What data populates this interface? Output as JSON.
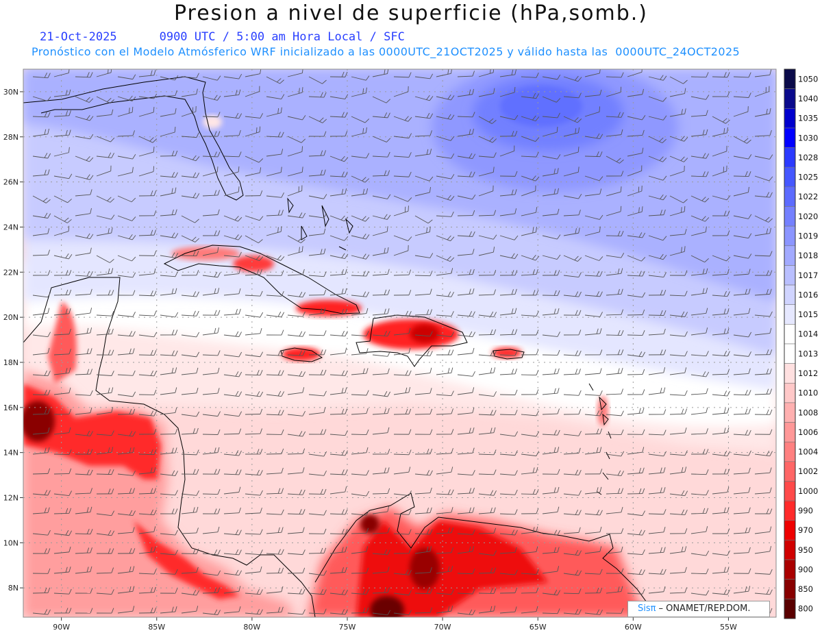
{
  "title": "Presion a nivel de superficie (hPa,somb.)",
  "date": "21-Oct-2025",
  "valid_time": "0900 UTC / 5:00 am Hora Local / SFC",
  "subtitle": "Pronóstico con el Modelo Atmósferico WRF inicializado a las 0000UTC_21OCT2025 y válido hasta las  0000UTC_24OCT2025",
  "lat_labels": [
    "30N",
    "28N",
    "26N",
    "24N",
    "22N",
    "20N",
    "18N",
    "16N",
    "14N",
    "12N",
    "10N",
    "8N"
  ],
  "lon_labels": [
    "90W",
    "85W",
    "80W",
    "75W",
    "70W",
    "65W",
    "60W",
    "55W"
  ],
  "legend_levels": [
    "1050",
    "1040",
    "1035",
    "1030",
    "1028",
    "1025",
    "1022",
    "1020",
    "1019",
    "1018",
    "1017",
    "1016",
    "1015",
    "1014",
    "1013",
    "1012",
    "1010",
    "1008",
    "1006",
    "1004",
    "1002",
    "1000",
    "990",
    "970",
    "950",
    "900",
    "850",
    "800"
  ],
  "legend_colors": [
    "#0b0b4a",
    "#0a0a8c",
    "#0000cd",
    "#0000ff",
    "#2b3aff",
    "#4557ff",
    "#5c6bff",
    "#7480ff",
    "#8b95ff",
    "#a2aaff",
    "#b9bfff",
    "#d0d4ff",
    "#e6e8ff",
    "#ffffff",
    "#ffffff",
    "#ffe0e0",
    "#ffc8c8",
    "#ffb0b0",
    "#ff9898",
    "#ff8080",
    "#ff6666",
    "#ff4a4a",
    "#ff2a2a",
    "#ee0000",
    "#d00000",
    "#aa0000",
    "#880000",
    "#5a0000"
  ],
  "credit": {
    "logo": "Sisπ",
    "text": "– ONAMET/REP.DOM."
  },
  "map": {
    "lon_range": [
      -92,
      -52.5
    ],
    "lat_range": [
      6.7,
      31
    ]
  }
}
